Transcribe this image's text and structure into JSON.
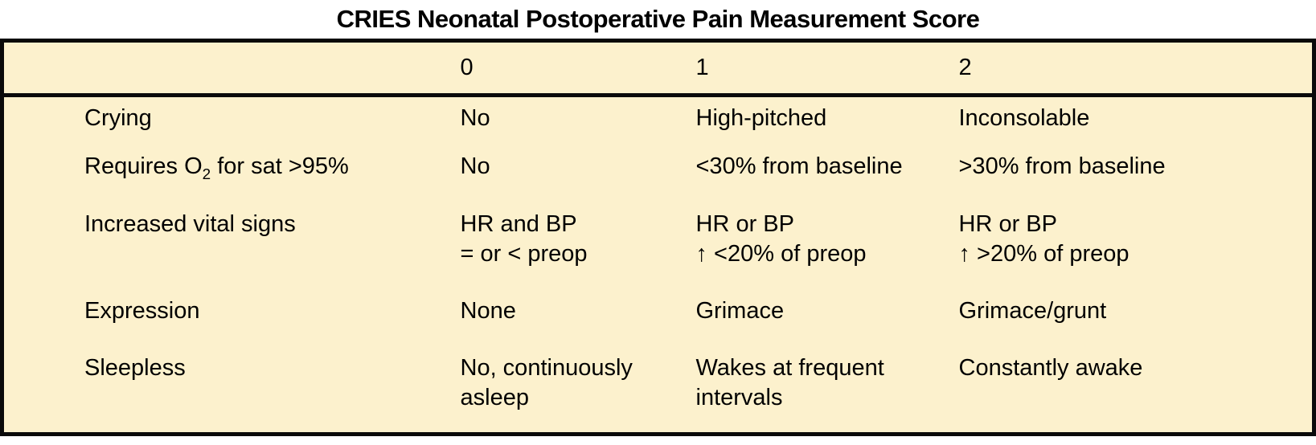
{
  "title": "CRIES Neonatal Postoperative Pain Measurement Score",
  "colors": {
    "table_background": "#FCF1CD",
    "border": "#0a0a0a",
    "text": "#000000",
    "page_background": "#ffffff"
  },
  "table": {
    "corner_header": "",
    "score_headers": [
      "0",
      "1",
      "2"
    ],
    "rows": [
      {
        "label": "Crying",
        "cells": [
          "No",
          "High-pitched",
          "Inconsolable"
        ]
      },
      {
        "label_pre": "Requires O",
        "label_sub": "2",
        "label_post": " for sat >95%",
        "cells": [
          "No",
          "<30% from baseline",
          ">30% from baseline"
        ]
      },
      {
        "label": "Increased vital signs",
        "cells": [
          "HR and BP\n= or < preop",
          "HR or BP\n↑ <20% of preop",
          "HR or BP\n↑ >20% of preop"
        ]
      },
      {
        "label": "Expression",
        "cells": [
          "None",
          "Grimace",
          "Grimace/grunt"
        ]
      },
      {
        "label": "Sleepless",
        "cells": [
          "No, continuously\nasleep",
          "Wakes at frequent\nintervals",
          "Constantly awake"
        ]
      }
    ]
  }
}
